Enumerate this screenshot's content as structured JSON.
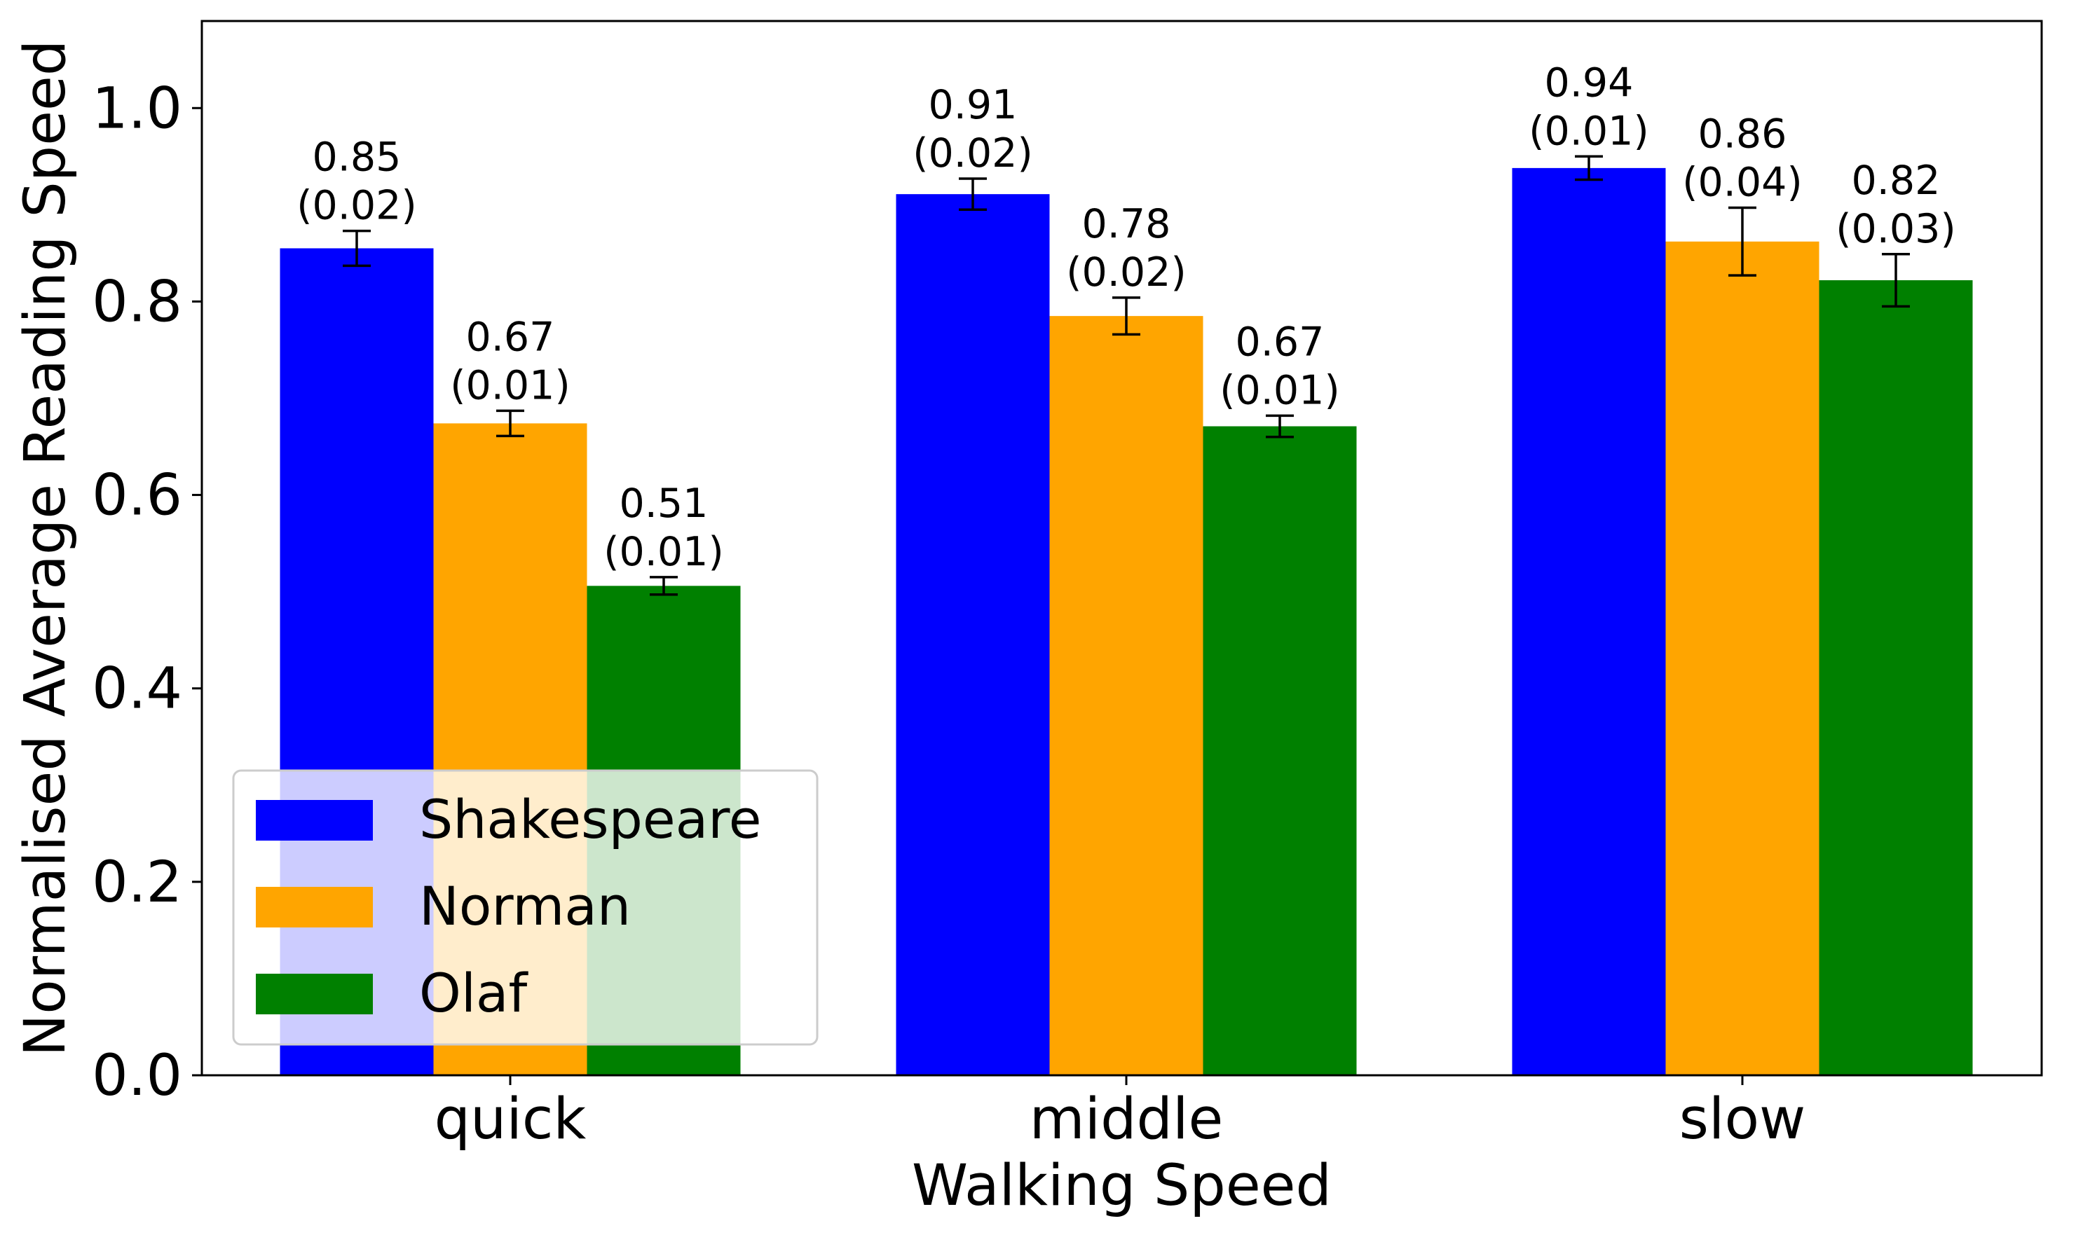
{
  "chart_data": {
    "type": "bar",
    "title": "",
    "xlabel": "Walking Speed",
    "ylabel": "Normalised Average Reading Speed",
    "categories": [
      "quick",
      "middle",
      "slow"
    ],
    "ylim": [
      0,
      1.09
    ],
    "yticks": [
      0.0,
      0.2,
      0.4,
      0.6,
      0.8,
      1.0
    ],
    "ytick_labels": [
      "0.0",
      "0.2",
      "0.4",
      "0.6",
      "0.8",
      "1.0"
    ],
    "grid": false,
    "legend": {
      "placement": "lower-left"
    },
    "series": [
      {
        "name": "Shakespeare",
        "color": "#0000ff",
        "values": [
          0.855,
          0.911,
          0.938
        ],
        "errors": [
          0.018,
          0.016,
          0.012
        ],
        "value_labels": [
          "0.85",
          "0.91",
          "0.94"
        ],
        "error_labels": [
          "(0.02)",
          "(0.02)",
          "(0.01)"
        ]
      },
      {
        "name": "Norman",
        "color": "#ffa500",
        "values": [
          0.674,
          0.785,
          0.862
        ],
        "errors": [
          0.013,
          0.019,
          0.035
        ],
        "value_labels": [
          "0.67",
          "0.78",
          "0.86"
        ],
        "error_labels": [
          "(0.01)",
          "(0.02)",
          "(0.04)"
        ]
      },
      {
        "name": "Olaf",
        "color": "#008000",
        "values": [
          0.506,
          0.671,
          0.822
        ],
        "errors": [
          0.009,
          0.011,
          0.027
        ],
        "value_labels": [
          "0.51",
          "0.67",
          "0.82"
        ],
        "error_labels": [
          "(0.01)",
          "(0.01)",
          "(0.03)"
        ]
      }
    ]
  }
}
